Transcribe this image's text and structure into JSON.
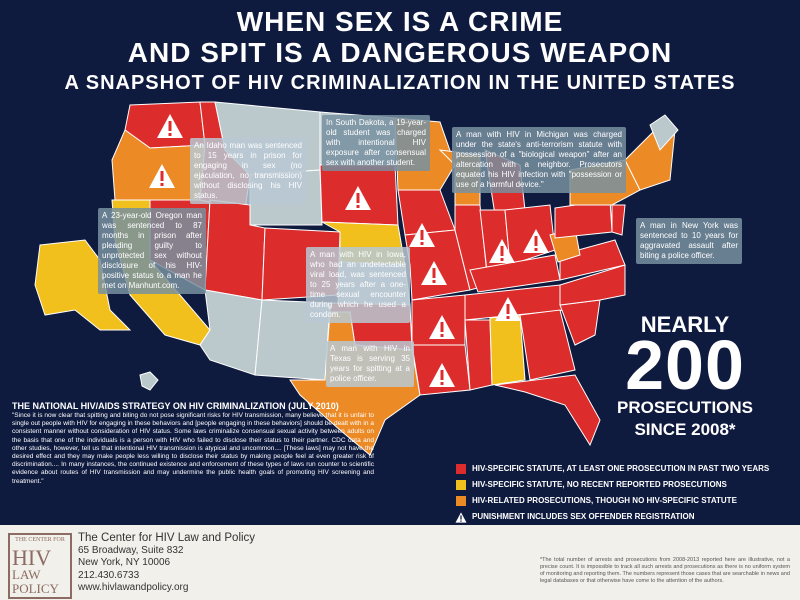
{
  "titles": {
    "line1": "WHEN SEX IS A CRIME",
    "line2": "AND SPIT IS A DANGEROUS WEAPON",
    "line3": "A SNAPSHOT OF HIV CRIMINALIZATION IN THE UNITED STATES"
  },
  "colors": {
    "background": "#0f1a3f",
    "hiv_specific_recent": "#dc2c2c",
    "hiv_specific_no_recent": "#f2c01d",
    "hiv_related": "#ec8a26",
    "no_statute": "#bcc9cc",
    "warning": "#ffffff"
  },
  "callouts": [
    {
      "id": "idaho",
      "text": "An Idaho man was sentenced to 15 years in prison for engaging in sex (no ejaculation, no transmission) without disclosing his HIV status."
    },
    {
      "id": "oregon",
      "text": "A 23-year-old Oregon man was sentenced to 87 months in prison after pleading guilty to unprotected sex without disclosure of his HIV-positive status to a man he met on Manhunt.com."
    },
    {
      "id": "south-dakota",
      "text": "In South Dakota, a 19-year-old student was charged with intentional HIV exposure after consensual sex with another student."
    },
    {
      "id": "michigan",
      "text": "A man with HIV in Michigan was charged under the state's anti-terrorism statute with possession of a \"biological weapon\" after an altercation with a neighbor. Prosecutors equated his HIV infection with \"possession or use of a harmful device.\""
    },
    {
      "id": "iowa",
      "text": "A man with HIV in Iowa, who had an undetectable viral load, was sentenced to 25 years after a one-time sexual encounter during which he used a condom."
    },
    {
      "id": "new-york",
      "text": "A man in New York was sentenced to 10 years for aggravated assault after biting a police officer."
    },
    {
      "id": "texas",
      "text": "A man with HIV in Texas is serving 35 years for spitting at a police officer."
    }
  ],
  "count": {
    "nearly": "NEARLY",
    "number": "200",
    "prosecutions": "PROSECUTIONS",
    "since": "SINCE 2008*"
  },
  "quote": {
    "title": "THE NATIONAL HIV/AIDS STRATEGY ON HIV CRIMINALIZATION (JULY 2010)",
    "text": "\"Since it is now clear that spitting and biting do not pose significant risks for HIV transmission, many believe that it is unfair to single out people with HIV for engaging in these behaviors and [people engaging in these behaviors] should be dealt with in a consistent manner without consideration of HIV status. Some laws criminalize consensual sexual activity between adults on the basis that one of the individuals is a person with HIV who failed to disclose their status to their partner. CDC data and other studies, however, tell us that intentional HIV transmission is atypical and uncommon.... [These laws] may not have the desired effect and they may make people less willing to disclose their status by making people feel at even greater risk of discrimination.... In many instances, the continued existence and enforcement of these types of laws run counter to scientific evidence about routes of HIV transmission and may undermine the public health goals of promoting HIV screening and treatment.\""
  },
  "legend": [
    {
      "label": "HIV-SPECIFIC STATUTE, AT LEAST ONE PROSECUTION IN PAST TWO YEARS",
      "color": "#dc2c2c",
      "icon": "swatch"
    },
    {
      "label": "HIV-SPECIFIC STATUTE, NO RECENT REPORTED PROSECUTIONS",
      "color": "#f2c01d",
      "icon": "swatch"
    },
    {
      "label": "HIV-RELATED PROSECUTIONS, THOUGH NO HIV-SPECIFIC STATUTE",
      "color": "#ec8a26",
      "icon": "swatch"
    },
    {
      "label": "PUNISHMENT INCLUDES SEX OFFENDER REGISTRATION",
      "color": "#ffffff",
      "icon": "warning-icon"
    }
  ],
  "footer": {
    "logo_top": "THE CENTER FOR",
    "logo_hiv": "HIV",
    "logo_law": "LAW",
    "logo_policy": "POLICY",
    "org": "The Center for HIV Law and Policy",
    "address1": "65 Broadway, Suite 832",
    "address2": "New York, NY 10006",
    "phone": "212.430.6733",
    "web": "www.hivlawandpolicy.org",
    "footnote": "*The total number of arrests and prosecutions from 2008-2013 reported here are illustrative, not a precise count. It is impossible to track all such arrests and prosecutions as there is no uniform system of monitoring and reporting them. The numbers represent those cases that are searchable in news and legal databases or that otherwise have come to the attention of the authors."
  }
}
